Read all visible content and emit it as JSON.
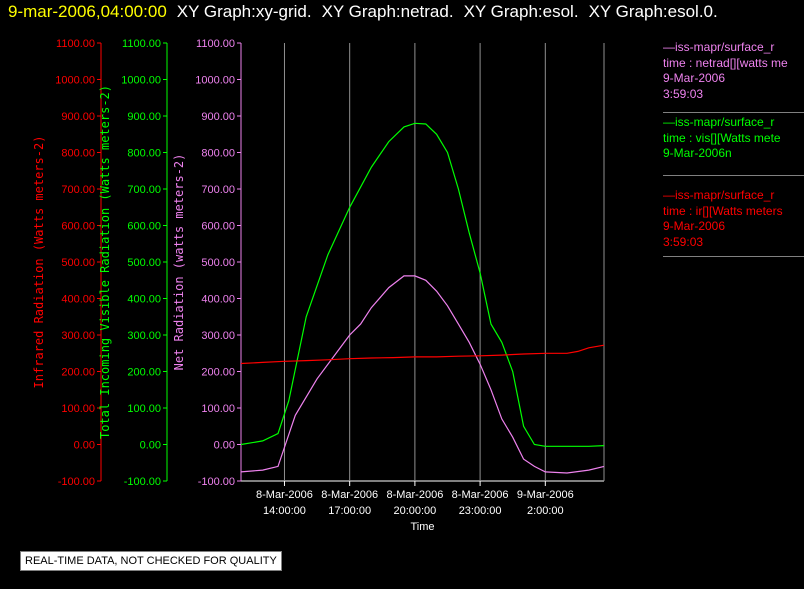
{
  "header": {
    "timestamp": "9-mar-2006,04:00:00",
    "graphs": [
      "XY Graph:xy-grid.",
      "XY Graph:netrad.",
      "XY Graph:esol.",
      "XY Graph:esol.0."
    ]
  },
  "legend": [
    {
      "line1": "—iss-mapr/surface_r",
      "line2": "time : netrad[][watts me",
      "line3": "9-Mar-2006",
      "line4": "3:59:03",
      "color": "#ee82ee"
    },
    {
      "line1": "—iss-mapr/surface_r",
      "line2": "time : vis[][Watts mete",
      "line3": "9-Mar-2006n",
      "line4": "",
      "color": "#00ff00"
    },
    {
      "line1": "—iss-mapr/surface_r",
      "line2": "time : ir[][Watts meters",
      "line3": "9-Mar-2006",
      "line4": "3:59:03",
      "color": "#ff0000"
    }
  ],
  "quality_note": "REAL-TIME DATA, NOT CHECKED FOR QUALITY",
  "chart_data": {
    "type": "line",
    "xlabel": "Time",
    "x_unit": "hours since 8-Mar-2006 00:00",
    "xlim": [
      12.0,
      28.7
    ],
    "xticks": [
      {
        "x": 14,
        "label1": "8-Mar-2006",
        "label2": "14:00:00"
      },
      {
        "x": 17,
        "label1": "8-Mar-2006",
        "label2": "17:00:00"
      },
      {
        "x": 20,
        "label1": "8-Mar-2006",
        "label2": "20:00:00"
      },
      {
        "x": 23,
        "label1": "8-Mar-2006",
        "label2": "23:00:00"
      },
      {
        "x": 26,
        "label1": "9-Mar-2006",
        "label2": "2:00:00"
      }
    ],
    "grid": "vertical",
    "ylim": [
      -100,
      1100
    ],
    "yticks": [
      "-100.00",
      "0.00",
      "100.00",
      "200.00",
      "300.00",
      "400.00",
      "500.00",
      "600.00",
      "700.00",
      "800.00",
      "900.00",
      "1000.00",
      "1100.00"
    ],
    "axes": [
      {
        "label": "Infrared Radiation (Watts meters-2)",
        "color": "#ff0000"
      },
      {
        "label": "Total Incoming Visible Radiation (Watts meters-2)",
        "color": "#00ff00"
      },
      {
        "label": "Net Radiation (watts meters-2)",
        "color": "#ee82ee"
      }
    ],
    "series": [
      {
        "color": "#00ff00",
        "x": [
          12.0,
          13.0,
          13.7,
          14.2,
          15.0,
          16.0,
          17.0,
          18.0,
          18.8,
          19.5,
          20.0,
          20.5,
          21.0,
          21.5,
          22.0,
          22.5,
          23.0,
          23.5,
          24.0,
          24.5,
          25.0,
          25.5,
          26.0,
          27.0,
          28.0,
          28.7
        ],
        "y": [
          0,
          10,
          30,
          120,
          350,
          520,
          650,
          760,
          830,
          870,
          880,
          878,
          850,
          800,
          700,
          580,
          470,
          330,
          280,
          200,
          50,
          0,
          -5,
          -5,
          -5,
          -3
        ]
      },
      {
        "color": "#ee82ee",
        "x": [
          12.0,
          13.0,
          13.7,
          14.5,
          15.5,
          16.5,
          17.0,
          17.5,
          18.0,
          18.8,
          19.5,
          20.0,
          20.5,
          21.0,
          21.5,
          22.0,
          22.5,
          23.0,
          23.5,
          24.0,
          24.5,
          25.0,
          25.5,
          26.0,
          27.0,
          28.0,
          28.7
        ],
        "y": [
          -75,
          -70,
          -60,
          80,
          180,
          260,
          300,
          330,
          375,
          430,
          462,
          462,
          450,
          420,
          380,
          330,
          280,
          220,
          150,
          70,
          20,
          -40,
          -60,
          -75,
          -78,
          -70,
          -60
        ]
      },
      {
        "color": "#ff0000",
        "x": [
          12.0,
          13.0,
          14.0,
          15.0,
          16.0,
          17.0,
          18.0,
          19.0,
          20.0,
          21.0,
          22.0,
          23.0,
          24.0,
          25.0,
          26.0,
          27.0,
          27.5,
          28.0,
          28.7
        ],
        "y": [
          222,
          225,
          228,
          230,
          232,
          235,
          237,
          238,
          240,
          240,
          242,
          243,
          245,
          248,
          250,
          250,
          255,
          265,
          272
        ]
      }
    ]
  }
}
